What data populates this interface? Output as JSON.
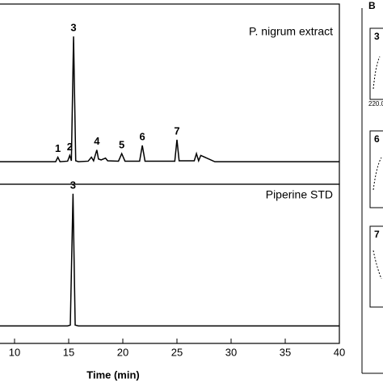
{
  "chart_data": [
    {
      "type": "line",
      "legend_text": "P. nigrum extract",
      "x": [
        5,
        13.8,
        14.0,
        14.2,
        14.9,
        15.1,
        15.25,
        15.45,
        15.65,
        15.9,
        16.8,
        17.1,
        17.3,
        17.45,
        17.6,
        17.75,
        18.0,
        18.4,
        18.6,
        19.6,
        19.9,
        20.2,
        21.55,
        21.8,
        22.05,
        24.8,
        25.0,
        25.2,
        26.6,
        26.8,
        27.0,
        27.2,
        28.5,
        40
      ],
      "values": [
        12.5,
        12.5,
        15,
        12.5,
        12.8,
        16,
        13,
        82,
        13,
        12.5,
        12.8,
        15,
        13,
        16,
        19,
        14,
        13.5,
        14.5,
        13,
        12.8,
        17,
        12.8,
        12.8,
        21.5,
        12.8,
        12.8,
        24.7,
        13,
        13,
        17,
        13,
        16,
        12.5,
        12.5
      ],
      "color": "#000000",
      "xlim": [
        5,
        40
      ],
      "ylim": [
        0,
        100
      ],
      "annotations": [
        {
          "text": "1",
          "x": 14.0
        },
        {
          "text": "2",
          "x": 15.1
        },
        {
          "text": "3",
          "x": 15.45
        },
        {
          "text": "4",
          "x": 17.6
        },
        {
          "text": "5",
          "x": 19.9
        },
        {
          "text": "6",
          "x": 21.8
        },
        {
          "text": "7",
          "x": 25.0
        }
      ]
    },
    {
      "type": "line",
      "legend_text": "Piperine STD",
      "x_label": "Time (min)",
      "x": [
        5,
        14.9,
        15.15,
        15.4,
        15.6,
        15.9,
        40
      ],
      "values": [
        11,
        11,
        11.5,
        94,
        11.5,
        11,
        11
      ],
      "color": "#000000",
      "xlim": [
        5,
        40
      ],
      "ylim": [
        0,
        100
      ],
      "xticks": [
        10,
        15,
        20,
        25,
        30,
        35,
        40
      ],
      "annotations": [
        {
          "text": "3",
          "x": 15.4
        }
      ]
    }
  ],
  "panel_b": {
    "label": "B",
    "insets": [
      "3",
      "6",
      "7"
    ],
    "axis_label": "220.0"
  }
}
